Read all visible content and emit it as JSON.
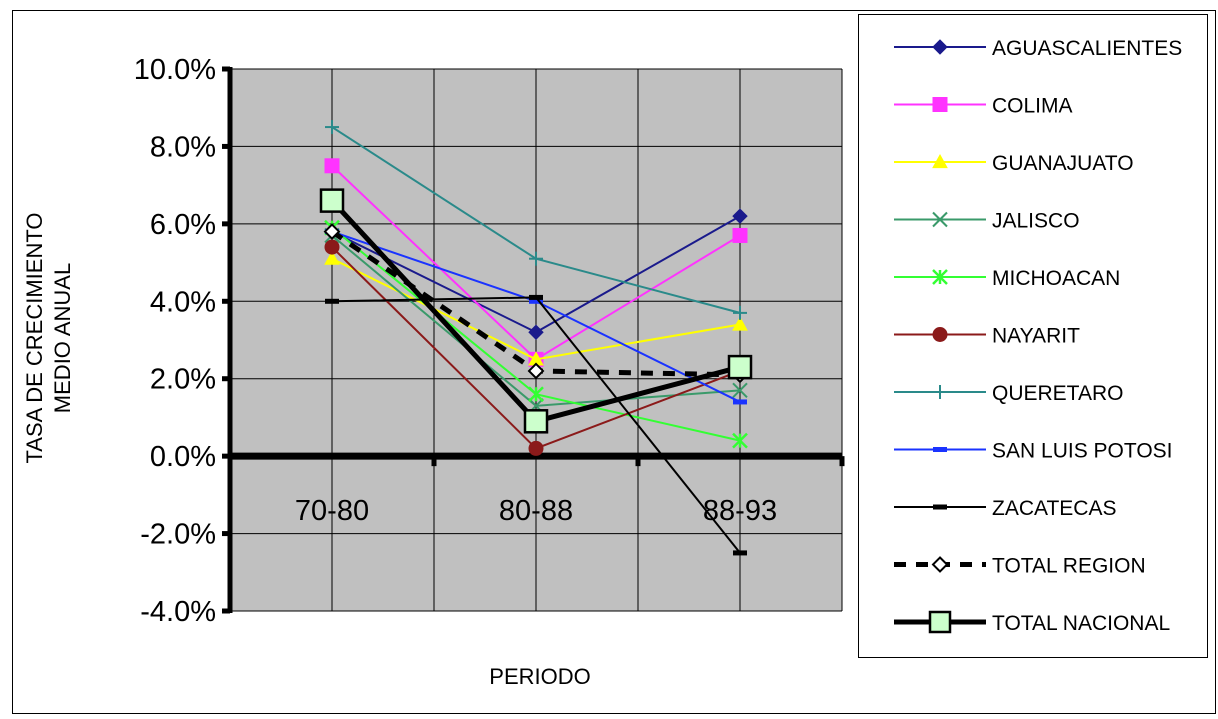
{
  "chart_data": {
    "type": "line",
    "title": "",
    "xlabel": "PERIODO",
    "ylabel_lines": [
      "TASA DE CRECIMIENTO",
      "MEDIO ANUAL"
    ],
    "categories": [
      "70-80",
      "80-88",
      "88-93"
    ],
    "ylim": [
      -0.04,
      0.1
    ],
    "yticks": [
      {
        "v": 0.1,
        "label": "10.0%"
      },
      {
        "v": 0.08,
        "label": "8.0%"
      },
      {
        "v": 0.06,
        "label": "6.0%"
      },
      {
        "v": 0.04,
        "label": "4.0%"
      },
      {
        "v": 0.02,
        "label": "2.0%"
      },
      {
        "v": 0.0,
        "label": "0.0%"
      },
      {
        "v": -0.02,
        "label": "-2.0%"
      },
      {
        "v": -0.04,
        "label": "-4.0%"
      }
    ],
    "grid": true,
    "legend_position": "right",
    "series": [
      {
        "name": "AGUASCALIENTES",
        "values": [
          0.058,
          0.032,
          0.062
        ],
        "color": "#1a1a8c",
        "marker": "diamond",
        "width": 2
      },
      {
        "name": "COLIMA",
        "values": [
          0.075,
          0.025,
          0.057
        ],
        "color": "#ff33ff",
        "marker": "square",
        "width": 2
      },
      {
        "name": "GUANAJUATO",
        "values": [
          0.051,
          0.025,
          0.034
        ],
        "color": "#ffff00",
        "marker": "triangle",
        "width": 2
      },
      {
        "name": "JALISCO",
        "values": [
          0.057,
          0.013,
          0.017
        ],
        "color": "#3a9a6a",
        "marker": "x",
        "width": 2
      },
      {
        "name": "MICHOACAN",
        "values": [
          0.059,
          0.016,
          0.004
        ],
        "color": "#33ff33",
        "marker": "asterisk",
        "width": 2
      },
      {
        "name": "NAYARIT",
        "values": [
          0.054,
          0.002,
          0.022
        ],
        "color": "#8b1a1a",
        "marker": "circle",
        "width": 2
      },
      {
        "name": "QUERETARO",
        "values": [
          0.085,
          0.051,
          0.037
        ],
        "color": "#2a8a8a",
        "marker": "plus",
        "width": 2
      },
      {
        "name": "SAN LUIS POTOSI",
        "values": [
          0.058,
          0.04,
          0.014
        ],
        "color": "#1a33ff",
        "marker": "dash",
        "width": 2
      },
      {
        "name": "ZACATECAS",
        "values": [
          0.04,
          0.041,
          -0.025
        ],
        "color": "#000000",
        "marker": "dash",
        "width": 2
      },
      {
        "name": "TOTAL REGION",
        "values": [
          0.058,
          0.022,
          0.021
        ],
        "color": "#000000",
        "marker": "diamond-open",
        "width": 5,
        "dashed": true
      },
      {
        "name": "TOTAL NACIONAL",
        "values": [
          0.066,
          0.009,
          0.023
        ],
        "color": "#000000",
        "marker": "square-open",
        "width": 5
      }
    ]
  }
}
